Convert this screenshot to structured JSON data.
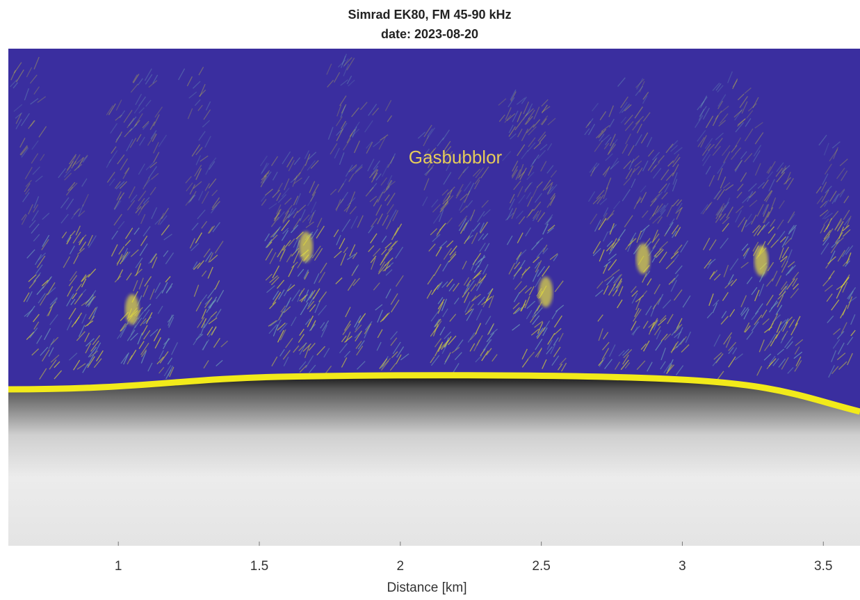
{
  "chart_data": {
    "type": "echogram",
    "title": "Simrad EK80, FM 45-90 kHz",
    "subtitle": "date: 2023-08-20",
    "annotation": "Gasbubblor",
    "xlabel": "Distance [km]",
    "xlim": [
      0.61,
      3.63
    ],
    "xticks": [
      1,
      1.5,
      2,
      2.5,
      3,
      3.5
    ]
  }
}
